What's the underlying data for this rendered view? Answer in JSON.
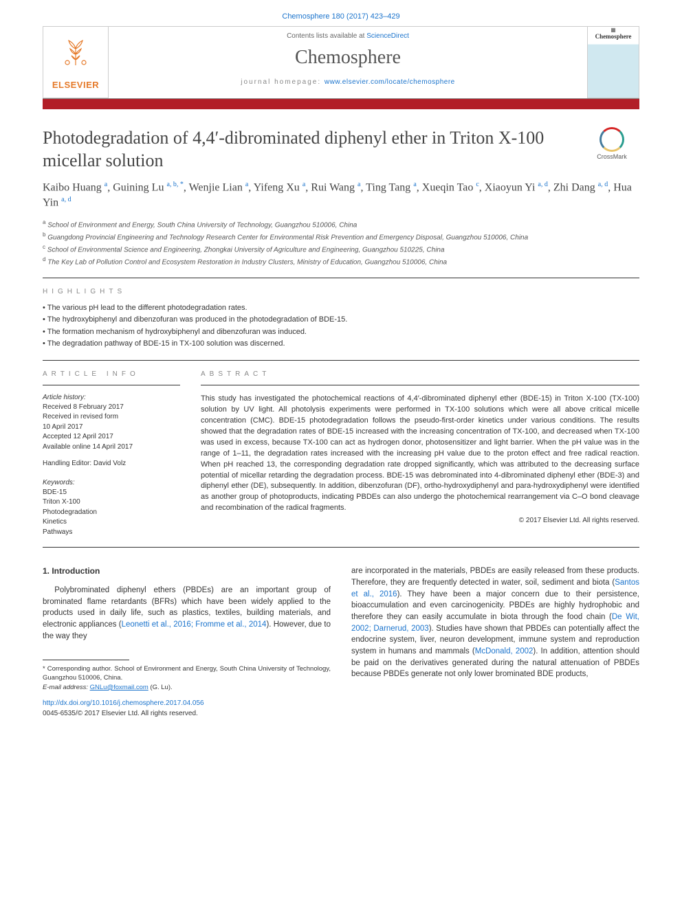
{
  "citation": "Chemosphere 180 (2017) 423–429",
  "header": {
    "contents_prefix": "Contents lists available at ",
    "contents_link": "ScienceDirect",
    "journal_name": "Chemosphere",
    "homepage_prefix": "journal homepage: ",
    "homepage_url": "www.elsevier.com/locate/chemosphere",
    "publisher": "ELSEVIER",
    "cover_title": "Chemosphere"
  },
  "crossmark": "CrossMark",
  "title": "Photodegradation of 4,4′-dibrominated diphenyl ether in Triton X-100 micellar solution",
  "authors_html": "Kaibo Huang <sup>a</sup>, Guining Lu <sup>a, b, *</sup>, Wenjie Lian <sup>a</sup>, Yifeng Xu <sup>a</sup>, Rui Wang <sup>a</sup>, Ting Tang <sup>a</sup>, Xueqin Tao <sup>c</sup>, Xiaoyun Yi <sup>a, d</sup>, Zhi Dang <sup>a, d</sup>, Hua Yin <sup>a, d</sup>",
  "affiliations": [
    {
      "sup": "a",
      "text": "School of Environment and Energy, South China University of Technology, Guangzhou 510006, China"
    },
    {
      "sup": "b",
      "text": "Guangdong Provincial Engineering and Technology Research Center for Environmental Risk Prevention and Emergency Disposal, Guangzhou 510006, China"
    },
    {
      "sup": "c",
      "text": "School of Environmental Science and Engineering, Zhongkai University of Agriculture and Engineering, Guangzhou 510225, China"
    },
    {
      "sup": "d",
      "text": "The Key Lab of Pollution Control and Ecosystem Restoration in Industry Clusters, Ministry of Education, Guangzhou 510006, China"
    }
  ],
  "highlights_label": "HIGHLIGHTS",
  "highlights": [
    "The various pH lead to the different photodegradation rates.",
    "The hydroxybiphenyl and dibenzofuran was produced in the photodegradation of BDE-15.",
    "The formation mechanism of hydroxybiphenyl and dibenzofuran was induced.",
    "The degradation pathway of BDE-15 in TX-100 solution was discerned."
  ],
  "article_info_label": "ARTICLE INFO",
  "abstract_label": "ABSTRACT",
  "history_title": "Article history:",
  "history": "Received 8 February 2017\nReceived in revised form\n10 April 2017\nAccepted 12 April 2017\nAvailable online 14 April 2017",
  "handling_editor": "Handling Editor: David Volz",
  "keywords_title": "Keywords:",
  "keywords": "BDE-15\nTriton X-100\nPhotodegradation\nKinetics\nPathways",
  "abstract": "This study has investigated the photochemical reactions of 4,4′-dibrominated diphenyl ether (BDE-15) in Triton X-100 (TX-100) solution by UV light. All photolysis experiments were performed in TX-100 solutions which were all above critical micelle concentration (CMC). BDE-15 photodegradation follows the pseudo-first-order kinetics under various conditions. The results showed that the degradation rates of BDE-15 increased with the increasing concentration of TX-100, and decreased when TX-100 was used in excess, because TX-100 can act as hydrogen donor, photosensitizer and light barrier. When the pH value was in the range of 1–11, the degradation rates increased with the increasing pH value due to the proton effect and free radical reaction. When pH reached 13, the corresponding degradation rate dropped significantly, which was attributed to the decreasing surface potential of micellar retarding the degradation process. BDE-15 was debrominated into 4-dibrominated diphenyl ether (BDE-3) and diphenyl ether (DE), subsequently. In addition, dibenzofuran (DF), ortho-hydroxydiphenyl and para-hydroxydiphenyl were identified as another group of photoproducts, indicating PBDEs can also undergo the photochemical rearrangement via C–O bond cleavage and recombination of the radical fragments.",
  "abstract_copyright": "© 2017 Elsevier Ltd. All rights reserved.",
  "intro_title": "1. Introduction",
  "intro_col1": "Polybrominated diphenyl ethers (PBDEs) are an important group of brominated flame retardants (BFRs) which have been widely applied to the products used in daily life, such as plastics, textiles, building materials, and electronic appliances (<span class=\"link\">Leonetti et al., 2016; Fromme et al., 2014</span>). However, due to the way they",
  "intro_col2": "are incorporated in the materials, PBDEs are easily released from these products. Therefore, they are frequently detected in water, soil, sediment and biota (<span class=\"link\">Santos et al., 2016</span>). They have been a major concern due to their persistence, bioaccumulation and even carcinogenicity. PBDEs are highly hydrophobic and therefore they can easily accumulate in biota through the food chain (<span class=\"link\">De Wit, 2002; Darnerud, 2003</span>). Studies have shown that PBDEs can potentially affect the endocrine system, liver, neuron development, immune system and reproduction system in humans and mammals (<span class=\"link\">McDonald, 2002</span>). In addition, attention should be paid on the derivatives generated during the natural attenuation of PBDEs because PBDEs generate not only lower brominated BDE products,",
  "footnotes": {
    "corresponding": "* Corresponding author. School of Environment and Energy, South China University of Technology, Guangzhou 510006, China.",
    "email_label": "E-mail address:",
    "email": "GNLu@foxmail.com",
    "email_who": "(G. Lu)."
  },
  "doi": "http://dx.doi.org/10.1016/j.chemosphere.2017.04.056",
  "issn": "0045-6535/© 2017 Elsevier Ltd. All rights reserved.",
  "colors": {
    "brand_orange": "#e57a2a",
    "brand_red": "#b21e27",
    "link_blue": "#1a73cc",
    "text_gray": "#555555"
  }
}
